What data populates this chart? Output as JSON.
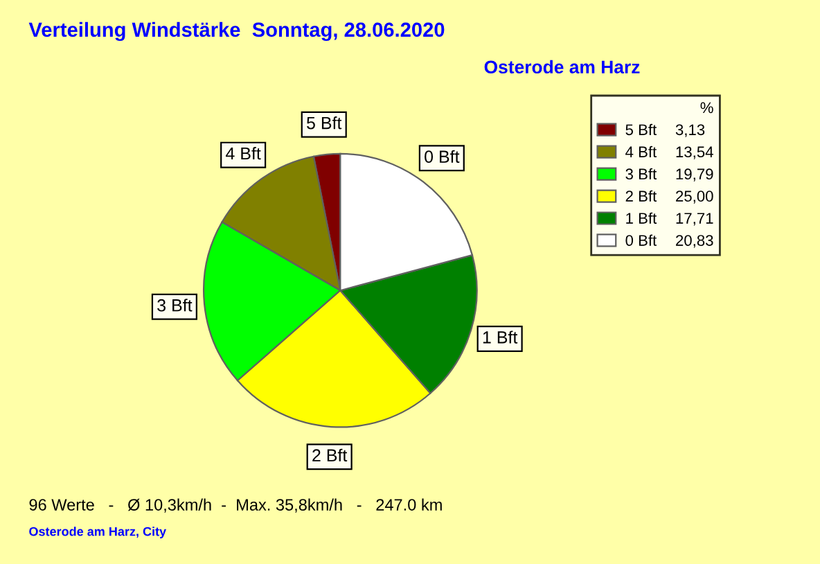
{
  "chart_data": {
    "type": "pie",
    "title": "Verteilung Windstärke  Sonntag, 28.06.2020",
    "subtitle": "Osterode am Harz",
    "categories": [
      "5 Bft",
      "4 Bft",
      "3 Bft",
      "2 Bft",
      "1 Bft",
      "0 Bft"
    ],
    "values": [
      3.13,
      13.54,
      19.79,
      25.0,
      17.71,
      20.83
    ],
    "value_labels": [
      "3,13",
      "13,54",
      "19,79",
      "25,00",
      "17,71",
      "20,83"
    ],
    "colors": [
      "#800000",
      "#808000",
      "#00ff00",
      "#ffff00",
      "#008000",
      "#ffffff"
    ],
    "legend": "top right",
    "legend_title": "%",
    "annotations": [
      "96 Werte   -   Ø 10,3km/h  -  Max. 35,8km/h   -   247.0 km",
      "Osterode am Harz, City"
    ]
  }
}
